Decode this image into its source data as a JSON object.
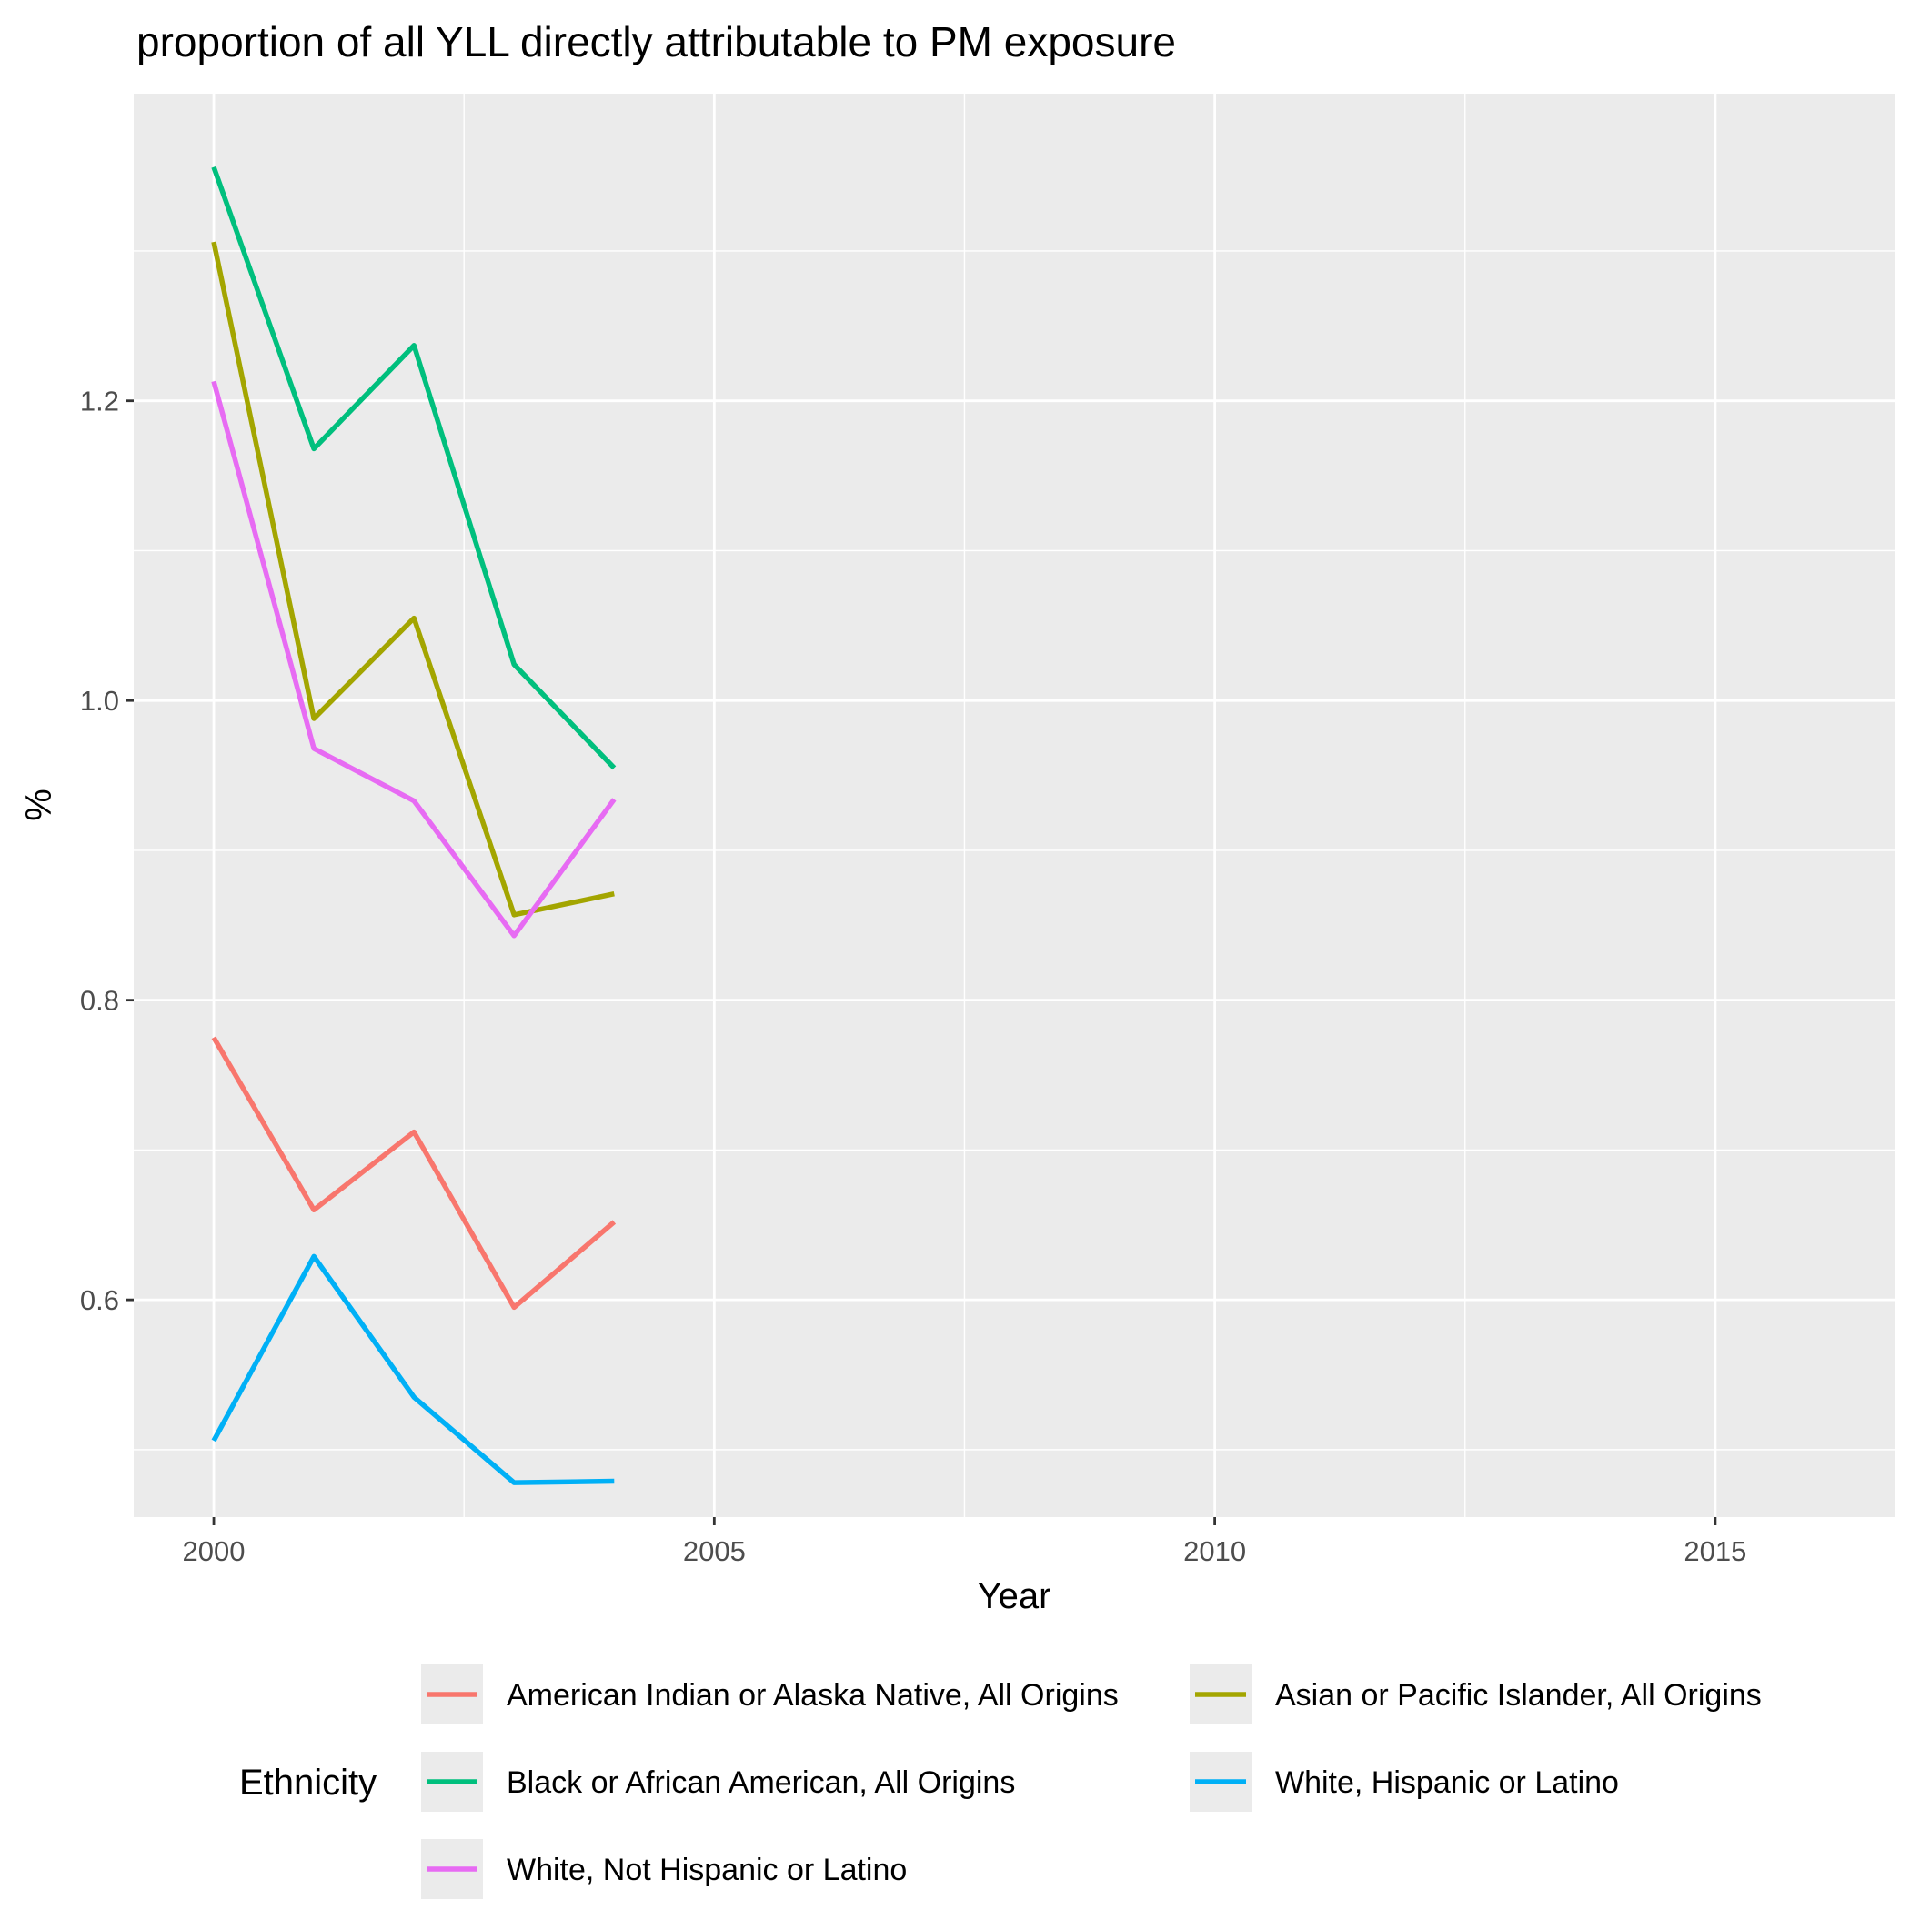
{
  "chart_data": {
    "type": "line",
    "title": "proportion of all YLL directly attributable to PM exposure",
    "xlabel": "Year",
    "ylabel": "%",
    "xlim": [
      1999.2,
      2016.8
    ],
    "ylim": [
      0.455,
      1.405
    ],
    "x_ticks": [
      2000,
      2005,
      2010,
      2015
    ],
    "y_ticks": [
      0.6,
      0.8,
      1.0,
      1.2
    ],
    "x_tick_labels": [
      "2000",
      "2005",
      "2010",
      "2015"
    ],
    "y_tick_labels": [
      "0.6",
      "0.8",
      "1.0",
      "1.2"
    ],
    "grid": true,
    "background": "#ebebeb",
    "legend_title": "Ethnicity",
    "legend_position": "bottom",
    "series": [
      {
        "name": "American Indian or Alaska Native, All Origins",
        "color": "#F8766D",
        "x": [
          2000,
          2001,
          2002,
          2003,
          2004
        ],
        "values": [
          0.775,
          0.66,
          0.712,
          0.595,
          0.652
        ]
      },
      {
        "name": "Asian or Pacific Islander, All Origins",
        "color": "#A3A500",
        "x": [
          2000,
          2001,
          2002,
          2003,
          2004
        ],
        "values": [
          1.306,
          0.988,
          1.055,
          0.857,
          0.871
        ]
      },
      {
        "name": "Black or African American, All Origins",
        "color": "#00BF7D",
        "x": [
          2000,
          2001,
          2002,
          2003,
          2004
        ],
        "values": [
          1.356,
          1.168,
          1.237,
          1.024,
          0.955
        ]
      },
      {
        "name": "White, Hispanic or Latino",
        "color": "#00B0F6",
        "x": [
          2000,
          2001,
          2002,
          2003,
          2004
        ],
        "values": [
          0.506,
          0.629,
          0.535,
          0.478,
          0.479
        ]
      },
      {
        "name": "White, Not Hispanic or Latino",
        "color": "#E76BF3",
        "x": [
          2000,
          2001,
          2002,
          2003,
          2004
        ],
        "values": [
          1.213,
          0.968,
          0.933,
          0.843,
          0.934
        ]
      }
    ],
    "legend_layout": [
      [
        0,
        1
      ],
      [
        2,
        3
      ],
      [
        4
      ]
    ]
  }
}
